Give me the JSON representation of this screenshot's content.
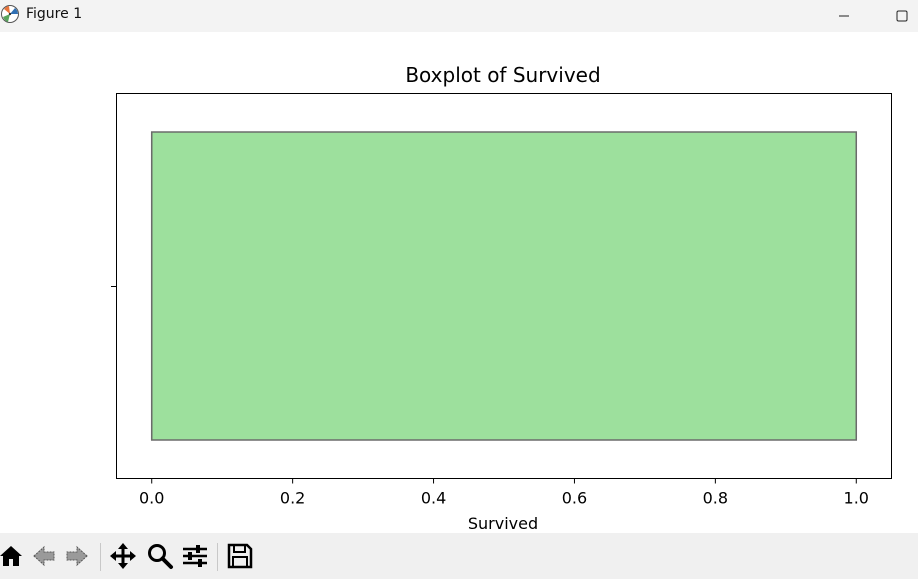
{
  "window": {
    "title": "Figure 1",
    "app_icon": "matplotlib-icon",
    "minimize_icon": "minimize-icon",
    "maximize_icon": "maximize-icon"
  },
  "toolbar": {
    "items": [
      {
        "name": "home-icon"
      },
      {
        "name": "back-arrow-icon"
      },
      {
        "name": "forward-arrow-icon"
      },
      {
        "name": "pan-icon"
      },
      {
        "name": "zoom-icon"
      },
      {
        "name": "configure-subplots-icon"
      },
      {
        "name": "save-icon"
      }
    ]
  },
  "chart_data": {
    "type": "boxplot",
    "orientation": "horizontal",
    "title": "Boxplot of Survived",
    "xlabel": "Survived",
    "ylabel": "",
    "xlim": [
      -0.05,
      1.05
    ],
    "xticks": [
      0.0,
      0.2,
      0.4,
      0.6,
      0.8,
      1.0
    ],
    "xtick_labels": [
      "0.0",
      "0.2",
      "0.4",
      "0.6",
      "0.8",
      "1.0"
    ],
    "box": {
      "min": 0.0,
      "q1": 0.0,
      "median": 0.0,
      "q3": 1.0,
      "max": 1.0
    },
    "box_color": "#9de09d",
    "edge_color": "#6b6b6b",
    "grid": false
  }
}
